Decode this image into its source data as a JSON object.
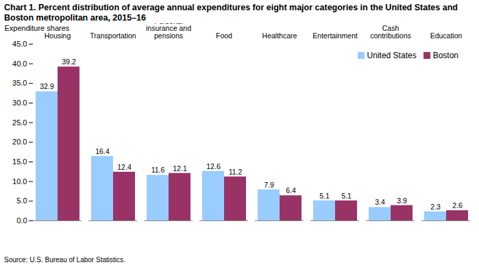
{
  "chart_data": {
    "type": "bar",
    "title": "Chart 1. Percent distribution of average annual expenditures for eight major categories in the United States and Boston metropolitan area, 2015–16",
    "y_label": "Expenditure shares",
    "caption": "Source: U.S. Bureau of Labor Statistics.",
    "categories": [
      "Housing",
      "Transportation",
      "Personal insurance and pensions",
      "Food",
      "Healthcare",
      "Entertainment",
      "Cash contributions",
      "Education"
    ],
    "series": [
      {
        "name": "United States",
        "color": "#99ccff",
        "values": [
          32.9,
          16.4,
          11.6,
          12.6,
          7.9,
          5.1,
          3.4,
          2.3
        ]
      },
      {
        "name": "Boston",
        "color": "#993366",
        "values": [
          39.2,
          12.4,
          12.1,
          11.2,
          6.4,
          5.1,
          3.9,
          2.6
        ]
      }
    ],
    "ylim": [
      0,
      45
    ],
    "yticks": [
      {
        "value": 0,
        "label": "0.0"
      },
      {
        "value": 5,
        "label": "5.0"
      },
      {
        "value": 10,
        "label": "10.0"
      },
      {
        "value": 15,
        "label": "15.0"
      },
      {
        "value": 20,
        "label": "20.0"
      },
      {
        "value": 25,
        "label": "25.0"
      },
      {
        "value": 30,
        "label": "30.0"
      },
      {
        "value": 35,
        "label": "35.0"
      },
      {
        "value": 40,
        "label": "40.0"
      },
      {
        "value": 45,
        "label": "45.0"
      }
    ],
    "grid": false,
    "legend": "top-right",
    "data_labels": true
  }
}
